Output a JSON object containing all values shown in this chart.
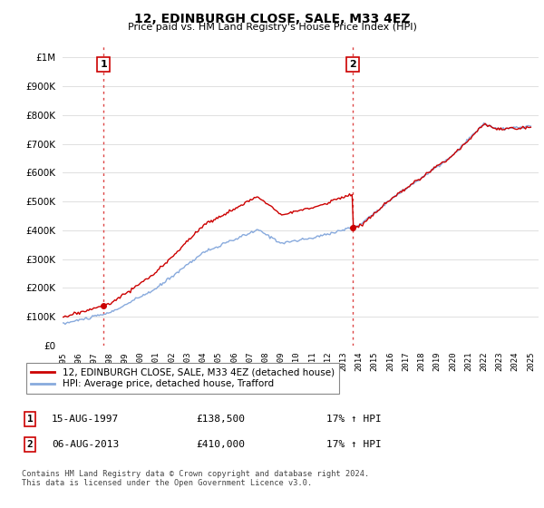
{
  "title": "12, EDINBURGH CLOSE, SALE, M33 4EZ",
  "subtitle": "Price paid vs. HM Land Registry's House Price Index (HPI)",
  "ytick_values": [
    0,
    100000,
    200000,
    300000,
    400000,
    500000,
    600000,
    700000,
    800000,
    900000,
    1000000
  ],
  "ylim": [
    0,
    1050000
  ],
  "xlim_start": 1995.0,
  "xlim_end": 2025.5,
  "xtick_years": [
    1995,
    1996,
    1997,
    1998,
    1999,
    2000,
    2001,
    2002,
    2003,
    2004,
    2005,
    2006,
    2007,
    2008,
    2009,
    2010,
    2011,
    2012,
    2013,
    2014,
    2015,
    2016,
    2017,
    2018,
    2019,
    2020,
    2021,
    2022,
    2023,
    2024,
    2025
  ],
  "sale1_x": 1997.62,
  "sale1_y": 138500,
  "sale1_label": "15-AUG-1997",
  "sale1_price": "£138,500",
  "sale1_hpi": "17% ↑ HPI",
  "sale2_x": 2013.59,
  "sale2_y": 410000,
  "sale2_label": "06-AUG-2013",
  "sale2_price": "£410,000",
  "sale2_hpi": "17% ↑ HPI",
  "vline_color": "#dd4444",
  "vline_style": ":",
  "sale_dot_color": "#cc0000",
  "hpi_line_color": "#88aadd",
  "price_line_color": "#cc0000",
  "legend_label_price": "12, EDINBURGH CLOSE, SALE, M33 4EZ (detached house)",
  "legend_label_hpi": "HPI: Average price, detached house, Trafford",
  "annotation_box_color": "#cc0000",
  "footnote": "Contains HM Land Registry data © Crown copyright and database right 2024.\nThis data is licensed under the Open Government Licence v3.0.",
  "background_color": "#ffffff",
  "grid_color": "#e0e0e0"
}
